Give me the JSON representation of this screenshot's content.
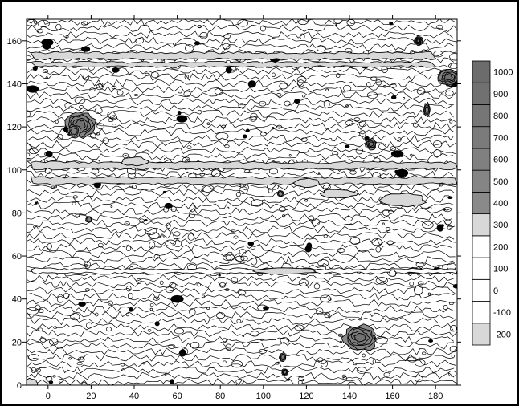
{
  "chart_data": {
    "type": "heatmap",
    "subtype": "filled-contour",
    "title": "",
    "xlabel": "",
    "ylabel": "",
    "xlim": [
      -10,
      190
    ],
    "ylim": [
      0,
      170
    ],
    "x_ticks": [
      0,
      20,
      40,
      60,
      80,
      100,
      120,
      140,
      160,
      180
    ],
    "y_ticks": [
      0,
      20,
      40,
      60,
      80,
      100,
      120,
      140,
      160
    ],
    "colorbar": {
      "levels": [
        -200,
        -100,
        0,
        100,
        200,
        300,
        400,
        500,
        600,
        700,
        800,
        900,
        1000
      ],
      "labels": [
        "-200",
        "-100",
        "0",
        "100",
        "200",
        "300",
        "400",
        "500",
        "600",
        "700",
        "800",
        "900",
        "1000"
      ],
      "band_colors": [
        "#d8d8d8",
        "#ffffff",
        "#ffffff",
        "#ffffff",
        "#ffffff",
        "#d8d8d8",
        "#8a8a8a",
        "#858585",
        "#808080",
        "#7b7b7b",
        "#767676",
        "#717171",
        "#6c6c6c"
      ]
    },
    "background_level": 0,
    "features": [
      {
        "type": "peak",
        "x": 15,
        "y": 121,
        "value": 1000,
        "rx": 7,
        "ry": 6
      },
      {
        "type": "peak",
        "x": 12,
        "y": 118,
        "value": 700,
        "rx": 3,
        "ry": 3
      },
      {
        "type": "peak",
        "x": 145,
        "y": 22,
        "value": 1000,
        "rx": 8,
        "ry": 6
      },
      {
        "type": "peak",
        "x": 186,
        "y": 143,
        "value": 1000,
        "rx": 5,
        "ry": 4
      },
      {
        "type": "peak",
        "x": 172,
        "y": 160,
        "value": 1000,
        "rx": 2,
        "ry": 2
      },
      {
        "type": "peak",
        "x": 150,
        "y": 112,
        "value": 900,
        "rx": 2.5,
        "ry": 2.5
      },
      {
        "type": "peak",
        "x": 176,
        "y": 128,
        "value": 700,
        "rx": 1.5,
        "ry": 3
      },
      {
        "type": "peak",
        "x": 109,
        "y": 13,
        "value": 700,
        "rx": 1.5,
        "ry": 2
      },
      {
        "type": "peak",
        "x": 110,
        "y": 6,
        "value": 700,
        "rx": 1.5,
        "ry": 1.5
      },
      {
        "type": "peak",
        "x": 19,
        "y": 77,
        "value": 500,
        "rx": 1.5,
        "ry": 1.5
      },
      {
        "type": "peak",
        "x": 108,
        "y": 89,
        "value": 500,
        "rx": 1.5,
        "ry": 1.5
      },
      {
        "type": "peak",
        "x": 170,
        "y": 53,
        "value": 500,
        "rx": 4,
        "ry": 1.5
      },
      {
        "type": "band",
        "x": [
          -8,
          180
        ],
        "y": 153,
        "value": 300,
        "rx": 0,
        "ry": 1.5
      },
      {
        "type": "band",
        "x": [
          -8,
          180
        ],
        "y": 149,
        "value": 300,
        "rx": 0,
        "ry": 1
      },
      {
        "type": "band",
        "x": [
          -8,
          190
        ],
        "y": 102,
        "value": 300,
        "rx": 0,
        "ry": 1.5
      },
      {
        "type": "band",
        "x": [
          -8,
          190
        ],
        "y": 95,
        "value": 300,
        "rx": 0,
        "ry": 1.5
      },
      {
        "type": "band",
        "x": [
          -8,
          190
        ],
        "y": 53,
        "value": 200,
        "rx": 0,
        "ry": 1
      },
      {
        "type": "patch",
        "x": 165,
        "y": 86,
        "value": 300,
        "rx": 10,
        "ry": 3
      },
      {
        "type": "patch",
        "x": 135,
        "y": 89,
        "value": 300,
        "rx": 8,
        "ry": 2
      },
      {
        "type": "patch",
        "x": 120,
        "y": 94,
        "value": 300,
        "rx": 6,
        "ry": 2
      },
      {
        "type": "patch",
        "x": 40,
        "y": 104,
        "value": 300,
        "rx": 6,
        "ry": 2
      },
      {
        "type": "patch",
        "x": 110,
        "y": 53,
        "value": 300,
        "rx": 14,
        "ry": 1.5
      },
      {
        "type": "patch",
        "x": -8,
        "y": 1,
        "value": 300,
        "rx": 3,
        "ry": 2
      },
      {
        "type": "hole",
        "x": 172,
        "y": 44,
        "value": -100,
        "rx": 2,
        "ry": 2
      },
      {
        "type": "hole",
        "x": 160,
        "y": 52,
        "value": -100,
        "rx": 1.5,
        "ry": 1.5
      }
    ]
  }
}
